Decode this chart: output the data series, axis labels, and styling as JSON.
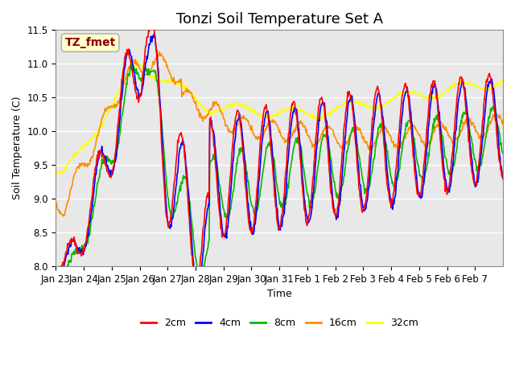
{
  "title": "Tonzi Soil Temperature Set A",
  "xlabel": "Time",
  "ylabel": "Soil Temperature (C)",
  "ylim": [
    8.0,
    11.5
  ],
  "annotation_text": "TZ_fmet",
  "annotation_color": "#8B0000",
  "annotation_bg": "#FFFFCC",
  "line_colors": {
    "2cm": "#FF0000",
    "4cm": "#0000FF",
    "8cm": "#00BB00",
    "16cm": "#FF8C00",
    "32cm": "#FFFF00"
  },
  "legend_labels": [
    "2cm",
    "4cm",
    "8cm",
    "16cm",
    "32cm"
  ],
  "xtick_labels": [
    "Jan 23",
    "Jan 24",
    "Jan 25",
    "Jan 26",
    "Jan 27",
    "Jan 28",
    "Jan 29",
    "Jan 30",
    "Jan 31",
    "Feb 1",
    "Feb 2",
    "Feb 3",
    "Feb 4",
    "Feb 5",
    "Feb 6",
    "Feb 7"
  ],
  "bg_color": "#E8E8E8",
  "title_fontsize": 13,
  "axis_fontsize": 9,
  "tick_fontsize": 8.5,
  "legend_fontsize": 9
}
